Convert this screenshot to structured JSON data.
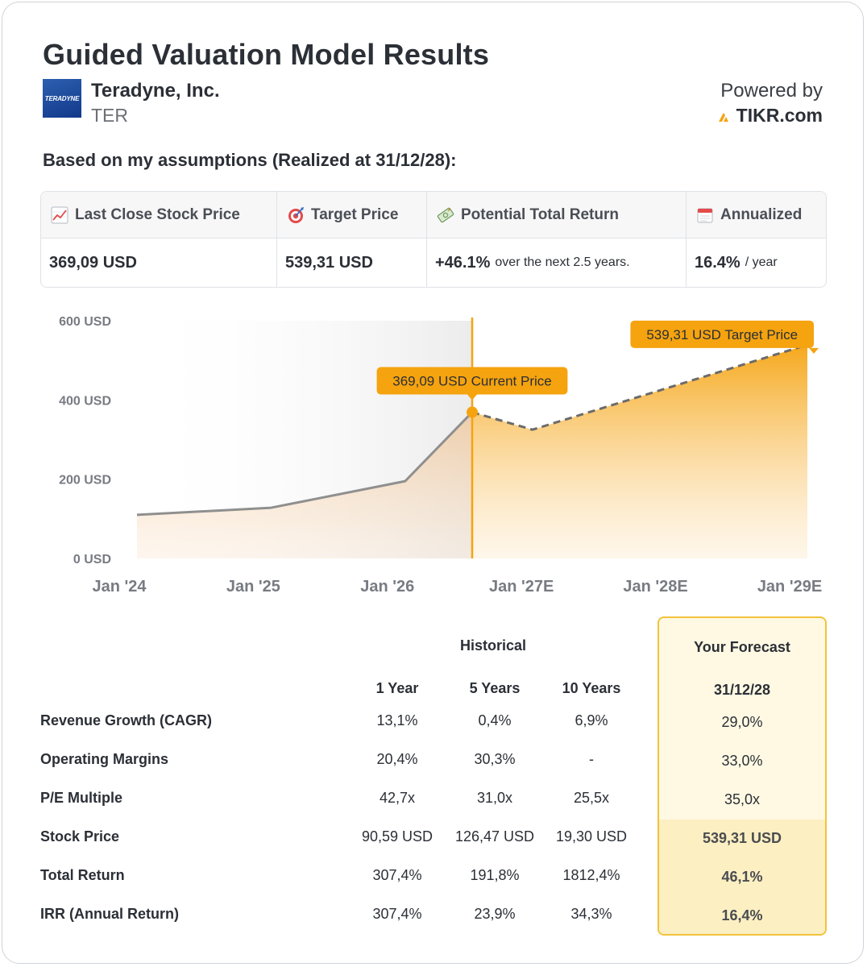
{
  "header": {
    "title": "Guided Valuation Model Results",
    "company_name": "Teradyne, Inc.",
    "ticker": "TER",
    "logo_text": "TERADYNE",
    "powered_by": "Powered by",
    "brand": "TIKR.com"
  },
  "subtitle": "Based on my assumptions (Realized at 31/12/28):",
  "summary": {
    "last_close_label": "Last Close Stock Price",
    "last_close_value": "369,09 USD",
    "target_label": "Target Price",
    "target_value": "539,31 USD",
    "ptr_label": "Potential Total Return",
    "ptr_value": "+46.1%",
    "ptr_suffix": "over the next 2.5 years.",
    "annualized_label": "Annualized",
    "annualized_value": "16.4%",
    "annualized_suffix": "/ year"
  },
  "chart_data": {
    "type": "area",
    "x_ticks": [
      "Jan '24",
      "Jan '25",
      "Jan '26",
      "Jan '27E",
      "Jan '28E",
      "Jan '29E"
    ],
    "y_ticks": [
      "0 USD",
      "200 USD",
      "400 USD",
      "600 USD"
    ],
    "ylim": [
      0,
      600
    ],
    "x_range": [
      2024.0,
      2029.0
    ],
    "current_x": 2026.5,
    "historical": {
      "x": [
        2024.0,
        2025.0,
        2026.0,
        2026.5
      ],
      "y": [
        110,
        128,
        195,
        369.09
      ]
    },
    "forecast": {
      "x": [
        2026.5,
        2026.95,
        2029.0
      ],
      "y": [
        369.09,
        325,
        539.31
      ]
    },
    "annotations": {
      "current": "369,09 USD Current Price",
      "target": "539,31 USD Target Price"
    },
    "colors": {
      "accent": "#f5a30f",
      "historical_line": "#8f8f8f",
      "forecast_line": "#6b6b6b"
    }
  },
  "table": {
    "historical_header": "Historical",
    "forecast_header": "Your Forecast",
    "forecast_date": "31/12/28",
    "col_headers": [
      "1 Year",
      "5 Years",
      "10 Years"
    ],
    "rows": [
      {
        "label": "Revenue Growth (CAGR)",
        "values": [
          "13,1%",
          "0,4%",
          "6,9%"
        ],
        "forecast": "29,0%"
      },
      {
        "label": "Operating Margins",
        "values": [
          "20,4%",
          "30,3%",
          "-"
        ],
        "forecast": "33,0%"
      },
      {
        "label": "P/E Multiple",
        "values": [
          "42,7x",
          "31,0x",
          "25,5x"
        ],
        "forecast": "35,0x"
      },
      {
        "label": "Stock Price",
        "values": [
          "90,59 USD",
          "126,47 USD",
          "19,30 USD"
        ],
        "forecast": "539,31 USD"
      },
      {
        "label": "Total Return",
        "values": [
          "307,4%",
          "191,8%",
          "1812,4%"
        ],
        "forecast": "46,1%"
      },
      {
        "label": "IRR (Annual Return)",
        "values": [
          "307,4%",
          "23,9%",
          "34,3%"
        ],
        "forecast": "16,4%"
      }
    ]
  }
}
